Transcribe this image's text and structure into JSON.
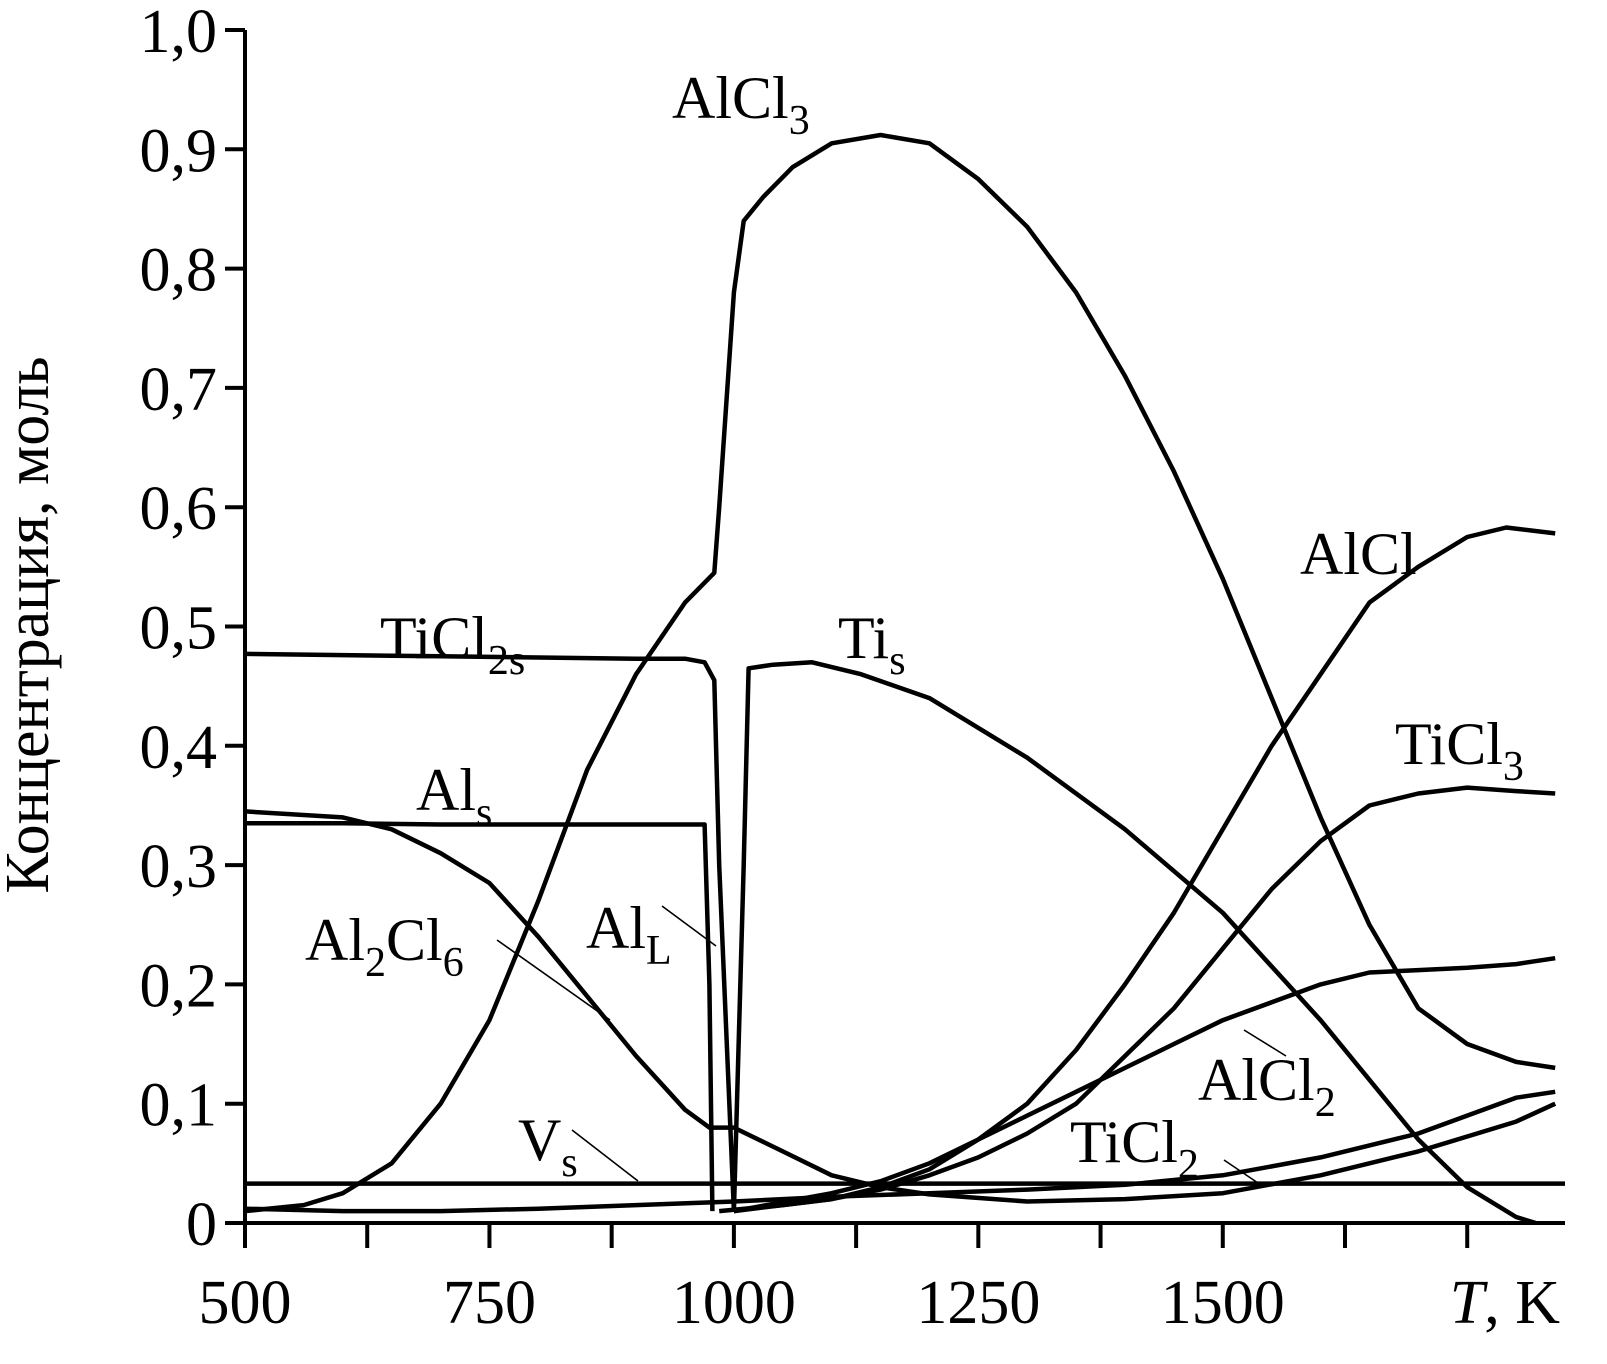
{
  "chart_data": {
    "type": "line",
    "xlabel": "T, K",
    "xlabel_italic": "T",
    "xlabel_rest": ", K",
    "ylabel": "Концентрация, моль",
    "xlim": [
      500,
      1850
    ],
    "ylim": [
      0,
      1.0
    ],
    "x_ticks": [
      500,
      625,
      750,
      875,
      1000,
      1125,
      1250,
      1375,
      1500,
      1625,
      1750
    ],
    "x_tick_labels": [
      "500",
      "750",
      "1000",
      "1250",
      "1500"
    ],
    "x_tick_label_values": [
      500,
      750,
      1000,
      1250,
      1500
    ],
    "y_ticks": [
      0,
      0.1,
      0.2,
      0.3,
      0.4,
      0.5,
      0.6,
      0.7,
      0.8,
      0.9,
      1.0
    ],
    "y_tick_labels": [
      "0",
      "0,1",
      "0,2",
      "0,3",
      "0,4",
      "0,5",
      "0,6",
      "0,7",
      "0,8",
      "0,9",
      "1,0"
    ],
    "grid": false,
    "series": [
      {
        "name": "AlCl3",
        "label_main": "AlCl",
        "label_sub": "3",
        "x": [
          500,
          560,
          600,
          650,
          700,
          750,
          800,
          850,
          900,
          950,
          980,
          985,
          1000,
          1010,
          1030,
          1060,
          1100,
          1150,
          1200,
          1250,
          1300,
          1350,
          1400,
          1450,
          1500,
          1550,
          1600,
          1650,
          1700,
          1750,
          1800,
          1840
        ],
        "y": [
          0.01,
          0.015,
          0.025,
          0.05,
          0.1,
          0.17,
          0.27,
          0.38,
          0.46,
          0.52,
          0.545,
          0.6,
          0.78,
          0.84,
          0.86,
          0.885,
          0.905,
          0.912,
          0.905,
          0.875,
          0.835,
          0.78,
          0.71,
          0.63,
          0.54,
          0.44,
          0.34,
          0.25,
          0.18,
          0.15,
          0.135,
          0.13
        ]
      },
      {
        "name": "TiCl2s",
        "label_main": "TiCl",
        "label_sub": "2s",
        "x": [
          500,
          600,
          700,
          800,
          900,
          950,
          970,
          980,
          985,
          1000
        ],
        "y": [
          0.477,
          0.476,
          0.475,
          0.474,
          0.473,
          0.473,
          0.47,
          0.455,
          0.3,
          0.01
        ]
      },
      {
        "name": "Tis",
        "label_main": "Ti",
        "label_sub": "s",
        "x": [
          1000,
          1010,
          1015,
          1040,
          1080,
          1130,
          1200,
          1300,
          1400,
          1500,
          1600,
          1700,
          1750,
          1800,
          1820
        ],
        "y": [
          0.01,
          0.3,
          0.465,
          0.468,
          0.47,
          0.46,
          0.44,
          0.39,
          0.33,
          0.26,
          0.17,
          0.07,
          0.03,
          0.005,
          0.0
        ]
      },
      {
        "name": "Als",
        "label_main": "Al",
        "label_sub": "s",
        "x": [
          500,
          600,
          700,
          800,
          900,
          970,
          975,
          978
        ],
        "y": [
          0.335,
          0.335,
          0.334,
          0.334,
          0.334,
          0.334,
          0.2,
          0.01
        ]
      },
      {
        "name": "Al2Cl6",
        "label_main": "Al",
        "label_sub": "2",
        "label_main2": "Cl",
        "label_sub2": "6",
        "x": [
          500,
          600,
          650,
          700,
          750,
          800,
          850,
          900,
          950,
          975,
          1000,
          1050,
          1100,
          1150,
          1200,
          1300,
          1400,
          1500,
          1600,
          1700,
          1800,
          1840
        ],
        "y": [
          0.345,
          0.34,
          0.33,
          0.31,
          0.285,
          0.24,
          0.19,
          0.14,
          0.095,
          0.08,
          0.08,
          0.06,
          0.04,
          0.03,
          0.024,
          0.018,
          0.02,
          0.025,
          0.04,
          0.06,
          0.085,
          0.1
        ]
      },
      {
        "name": "AlCl",
        "label_main": "AlCl",
        "label_sub": "",
        "x": [
          985,
          1050,
          1100,
          1150,
          1200,
          1250,
          1300,
          1350,
          1400,
          1450,
          1500,
          1550,
          1600,
          1650,
          1700,
          1750,
          1790,
          1840
        ],
        "y": [
          0.01,
          0.015,
          0.02,
          0.03,
          0.045,
          0.07,
          0.1,
          0.145,
          0.2,
          0.26,
          0.33,
          0.4,
          0.46,
          0.52,
          0.55,
          0.575,
          0.583,
          0.578
        ]
      },
      {
        "name": "TiCl3",
        "label_main": "TiCl",
        "label_sub": "3",
        "x": [
          1000,
          1100,
          1150,
          1200,
          1250,
          1300,
          1350,
          1400,
          1450,
          1500,
          1550,
          1600,
          1650,
          1700,
          1750,
          1800,
          1840
        ],
        "y": [
          0.01,
          0.02,
          0.028,
          0.04,
          0.055,
          0.075,
          0.1,
          0.14,
          0.18,
          0.23,
          0.28,
          0.32,
          0.35,
          0.36,
          0.365,
          0.362,
          0.36
        ]
      },
      {
        "name": "AlCl2",
        "label_main": "AlCl",
        "label_sub": "2",
        "x": [
          1000,
          1100,
          1150,
          1200,
          1250,
          1300,
          1350,
          1400,
          1450,
          1500,
          1550,
          1600,
          1650,
          1700,
          1750,
          1800,
          1840
        ],
        "y": [
          0.01,
          0.025,
          0.035,
          0.05,
          0.07,
          0.09,
          0.11,
          0.13,
          0.15,
          0.17,
          0.185,
          0.2,
          0.21,
          0.212,
          0.214,
          0.217,
          0.222
        ]
      },
      {
        "name": "TiCl2",
        "label_main": "TiCl",
        "label_sub": "2",
        "x": [
          500,
          600,
          700,
          800,
          900,
          1000,
          1100,
          1200,
          1300,
          1400,
          1500,
          1600,
          1700,
          1750,
          1800,
          1840
        ],
        "y": [
          0.012,
          0.01,
          0.01,
          0.012,
          0.015,
          0.018,
          0.022,
          0.025,
          0.028,
          0.032,
          0.04,
          0.055,
          0.075,
          0.09,
          0.105,
          0.11
        ]
      },
      {
        "name": "Vs",
        "label_main": "V",
        "label_sub": "s",
        "x": [
          500,
          1850
        ],
        "y": [
          0.033,
          0.033
        ]
      },
      {
        "name": "AlL",
        "label_main": "Al",
        "label_sub": "L",
        "x": [],
        "y": []
      }
    ]
  }
}
